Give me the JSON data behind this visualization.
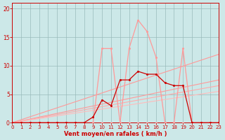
{
  "background_color": "#cce8e8",
  "grid_color": "#99bbbb",
  "xlabel": "Vent moyen/en rafales ( km/h )",
  "xlim": [
    0,
    23
  ],
  "ylim": [
    0,
    21
  ],
  "xticks": [
    0,
    1,
    2,
    3,
    4,
    5,
    6,
    7,
    8,
    9,
    10,
    11,
    12,
    13,
    14,
    15,
    16,
    17,
    18,
    19,
    20,
    21,
    22,
    23
  ],
  "yticks": [
    0,
    5,
    10,
    15,
    20
  ],
  "diag_lines": [
    {
      "x": [
        0,
        23
      ],
      "y": [
        0,
        12.0
      ],
      "color": "#ff9999",
      "lw": 0.8
    },
    {
      "x": [
        0,
        23
      ],
      "y": [
        0,
        7.5
      ],
      "color": "#ff9999",
      "lw": 0.8
    },
    {
      "x": [
        0,
        23
      ],
      "y": [
        0,
        6.5
      ],
      "color": "#ffaaaa",
      "lw": 0.8
    },
    {
      "x": [
        0,
        23
      ],
      "y": [
        0,
        5.5
      ],
      "color": "#ffbbbb",
      "lw": 0.8
    }
  ],
  "pink_x": [
    0,
    1,
    2,
    3,
    4,
    5,
    6,
    7,
    8,
    9,
    10,
    11,
    12,
    13,
    14,
    15,
    16,
    17,
    18,
    19,
    20,
    21,
    22,
    23
  ],
  "pink_y": [
    0,
    0,
    0,
    0,
    0,
    0,
    0,
    0,
    0,
    0,
    13,
    13,
    0,
    13,
    18,
    16,
    11.5,
    0,
    0,
    13,
    0,
    0,
    0,
    0
  ],
  "red_x": [
    0,
    1,
    2,
    3,
    4,
    5,
    6,
    7,
    8,
    9,
    10,
    11,
    12,
    13,
    14,
    15,
    16,
    17,
    18,
    19,
    20,
    21,
    22,
    23
  ],
  "red_y": [
    0,
    0,
    0,
    0,
    0,
    0,
    0,
    0,
    0,
    1,
    4,
    3,
    7.5,
    7.5,
    9,
    8.5,
    8.5,
    7,
    6.5,
    6.5,
    0,
    0,
    0,
    0
  ],
  "flat_x": [
    0,
    1,
    2,
    3,
    4,
    5,
    6,
    7,
    8,
    9,
    10,
    11,
    12,
    13,
    14,
    15,
    16,
    17,
    18,
    19,
    20,
    21,
    22,
    23
  ],
  "flat_y": [
    0,
    0,
    0,
    0,
    0,
    0,
    0,
    0,
    0,
    0,
    0,
    0,
    0,
    0,
    0,
    0,
    0,
    0,
    0,
    0,
    0,
    0,
    0,
    0
  ],
  "pink_color": "#ff9999",
  "red_color": "#cc0000",
  "flat_color": "#ffaaaa",
  "label_color": "#cc0000"
}
